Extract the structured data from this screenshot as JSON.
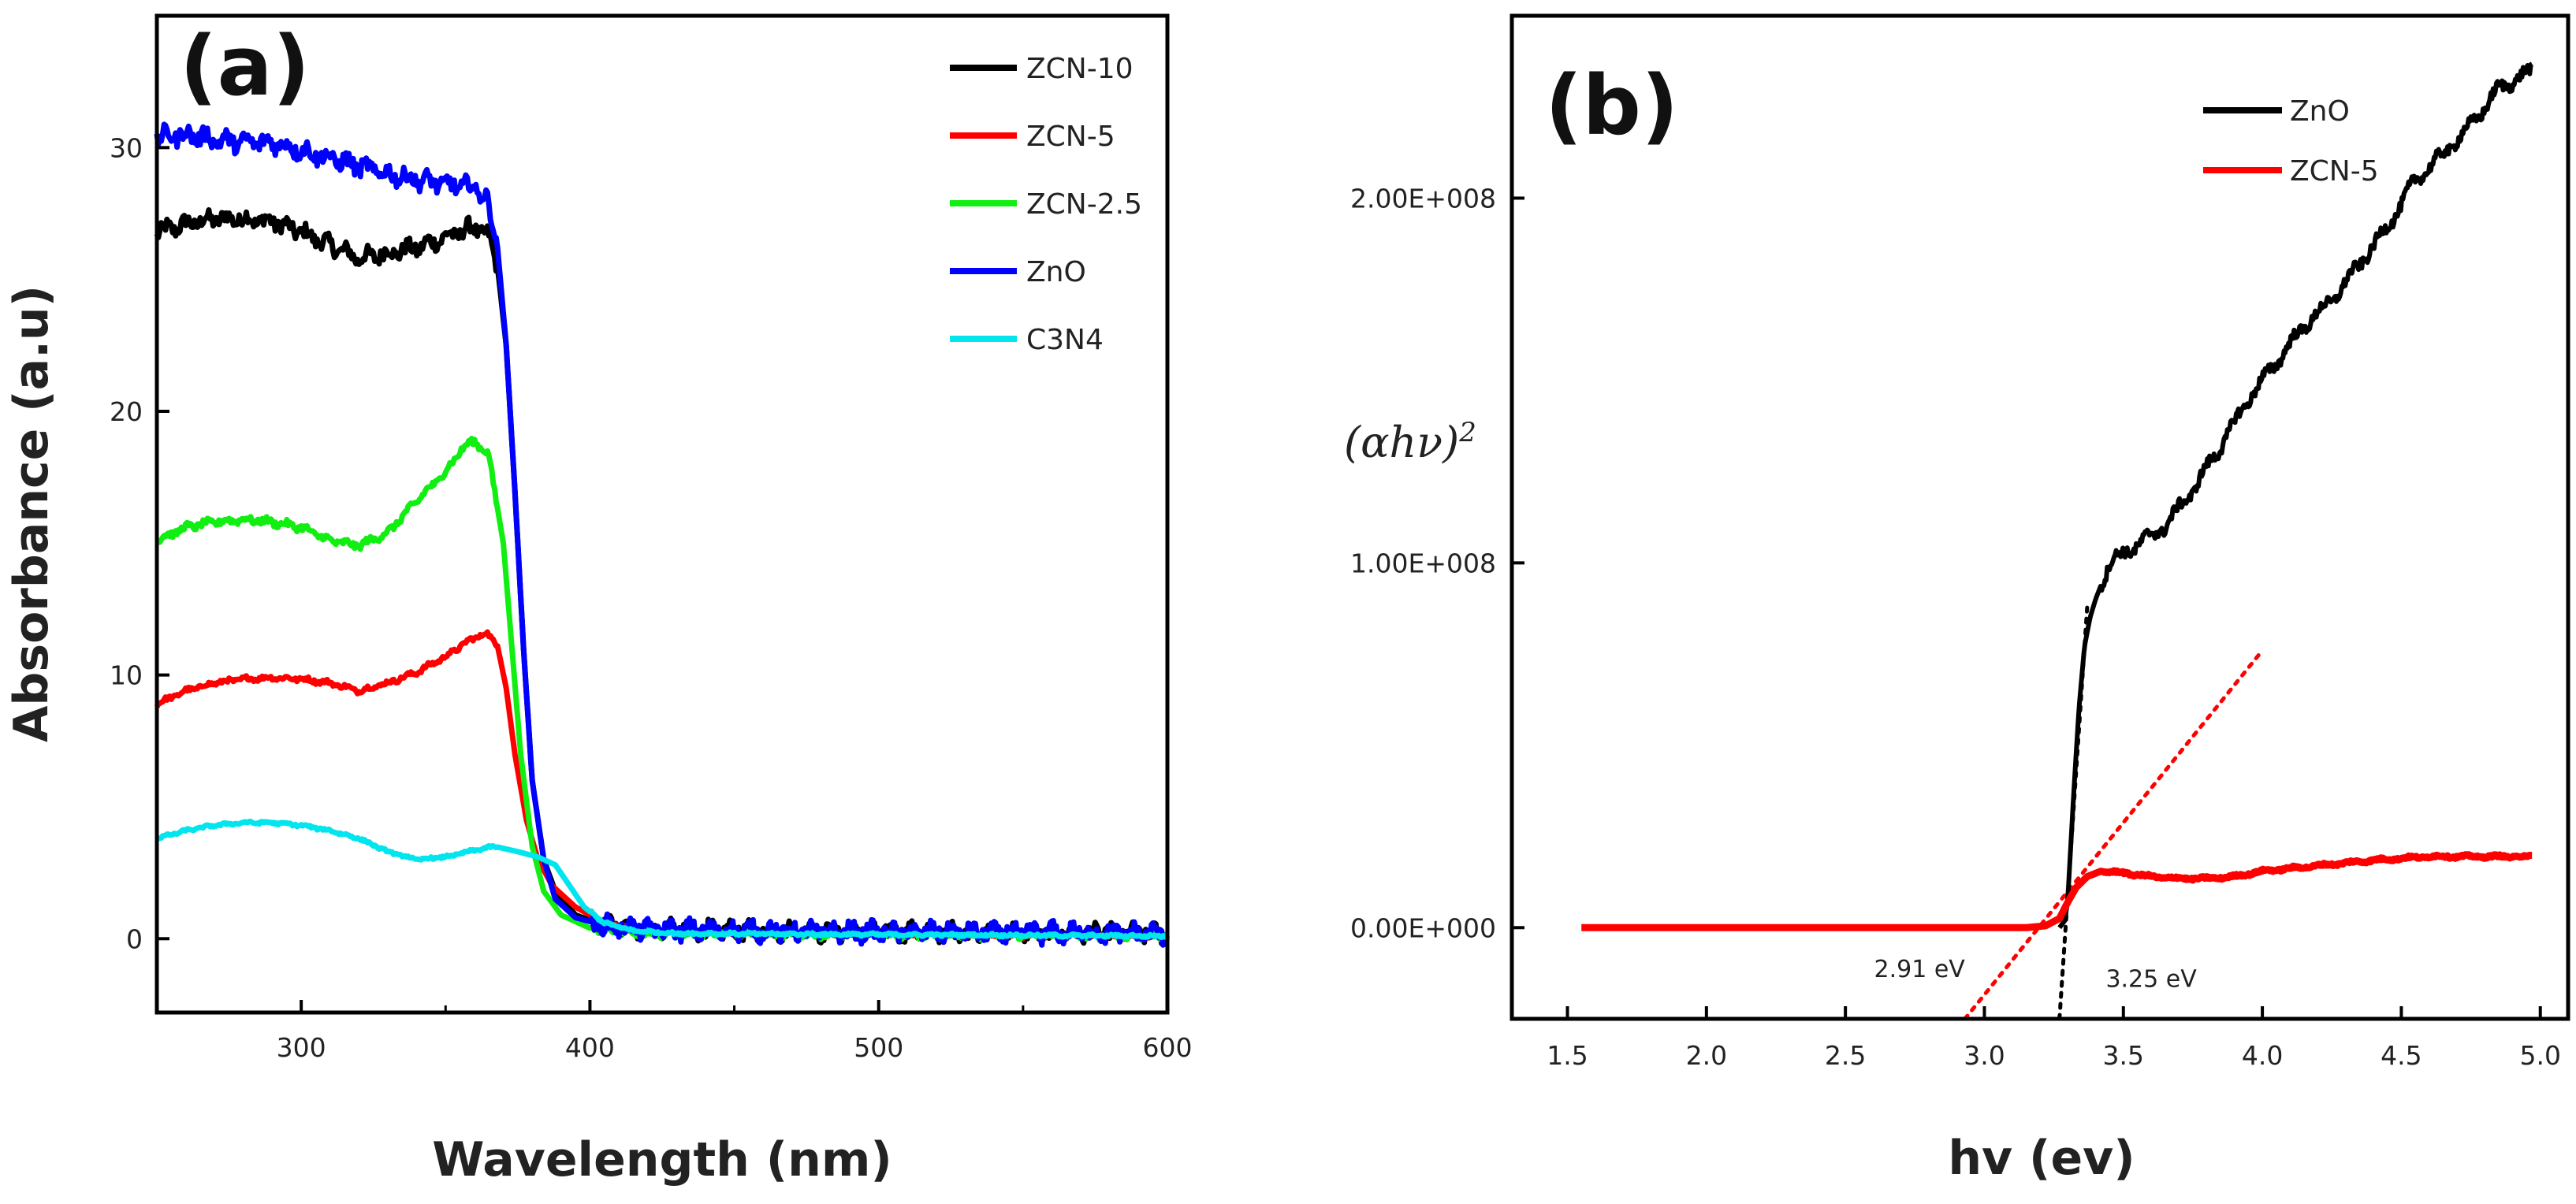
{
  "chart_data": [
    {
      "type": "line",
      "panel_label": "(a)",
      "xlabel": "Wavelength (nm)",
      "ylabel": "Absorbance (a.u)",
      "xlim": [
        250,
        600
      ],
      "ylim": [
        -2.8,
        35
      ],
      "xticks": [
        300,
        400,
        500,
        600
      ],
      "yticks": [
        0,
        10,
        20,
        30
      ],
      "legend_position": "top-right",
      "series": [
        {
          "name": "ZCN-10",
          "color": "#000000",
          "noise": 0.28,
          "points": [
            [
              250,
              26.8
            ],
            [
              260,
              27.1
            ],
            [
              270,
              27.3
            ],
            [
              280,
              27.3
            ],
            [
              290,
              27.2
            ],
            [
              300,
              26.8
            ],
            [
              310,
              26.3
            ],
            [
              320,
              25.8
            ],
            [
              330,
              26.0
            ],
            [
              340,
              26.2
            ],
            [
              350,
              26.6
            ],
            [
              360,
              27.0
            ],
            [
              365,
              26.6
            ],
            [
              368,
              25.5
            ],
            [
              371,
              22.5
            ],
            [
              374,
              17
            ],
            [
              377,
              11
            ],
            [
              380,
              6
            ],
            [
              384,
              3
            ],
            [
              388,
              1.8
            ],
            [
              395,
              0.9
            ],
            [
              405,
              0.5
            ],
            [
              420,
              0.35
            ],
            [
              450,
              0.3
            ],
            [
              500,
              0.25
            ],
            [
              600,
              0.2
            ]
          ]
        },
        {
          "name": "ZCN-5",
          "color": "#ff0000",
          "noise": 0.08,
          "points": [
            [
              250,
              8.9
            ],
            [
              260,
              9.4
            ],
            [
              270,
              9.7
            ],
            [
              280,
              9.85
            ],
            [
              290,
              9.9
            ],
            [
              300,
              9.85
            ],
            [
              310,
              9.7
            ],
            [
              320,
              9.4
            ],
            [
              330,
              9.7
            ],
            [
              340,
              10.1
            ],
            [
              350,
              10.7
            ],
            [
              358,
              11.3
            ],
            [
              364,
              11.6
            ],
            [
              368,
              11.1
            ],
            [
              371,
              9.5
            ],
            [
              374,
              7
            ],
            [
              378,
              4.5
            ],
            [
              382,
              3
            ],
            [
              387,
              2.0
            ],
            [
              395,
              1.2
            ],
            [
              405,
              0.6
            ],
            [
              420,
              0.3
            ],
            [
              450,
              0.2
            ],
            [
              500,
              0.15
            ],
            [
              600,
              0.1
            ]
          ]
        },
        {
          "name": "ZCN-2.5",
          "color": "#11ee11",
          "noise": 0.12,
          "points": [
            [
              250,
              15.1
            ],
            [
              260,
              15.6
            ],
            [
              270,
              15.8
            ],
            [
              280,
              15.9
            ],
            [
              290,
              15.8
            ],
            [
              300,
              15.6
            ],
            [
              310,
              15.1
            ],
            [
              320,
              14.9
            ],
            [
              330,
              15.4
            ],
            [
              340,
              16.6
            ],
            [
              350,
              17.7
            ],
            [
              355,
              18.5
            ],
            [
              360,
              18.9
            ],
            [
              365,
              18.3
            ],
            [
              370,
              15
            ],
            [
              373,
              11
            ],
            [
              376,
              7
            ],
            [
              380,
              3.5
            ],
            [
              384,
              1.8
            ],
            [
              390,
              0.9
            ],
            [
              400,
              0.4
            ],
            [
              420,
              0.2
            ],
            [
              600,
              0.1
            ]
          ]
        },
        {
          "name": "ZnO",
          "color": "#0000ff",
          "noise": 0.3,
          "points": [
            [
              250,
              30.4
            ],
            [
              260,
              30.5
            ],
            [
              270,
              30.3
            ],
            [
              280,
              30.2
            ],
            [
              290,
              30.2
            ],
            [
              300,
              29.9
            ],
            [
              310,
              29.6
            ],
            [
              320,
              29.3
            ],
            [
              330,
              29.0
            ],
            [
              340,
              28.8
            ],
            [
              350,
              28.6
            ],
            [
              360,
              28.5
            ],
            [
              364,
              28.1
            ],
            [
              366,
              27.2
            ],
            [
              368,
              26.2
            ],
            [
              371,
              22.5
            ],
            [
              374,
              17
            ],
            [
              377,
              11
            ],
            [
              380,
              6
            ],
            [
              384,
              3
            ],
            [
              388,
              1.5
            ],
            [
              395,
              0.8
            ],
            [
              405,
              0.5
            ],
            [
              420,
              0.35
            ],
            [
              500,
              0.25
            ],
            [
              600,
              0.2
            ]
          ]
        },
        {
          "name": "C3N4",
          "color": "#00e5ee",
          "noise": 0.04,
          "points": [
            [
              250,
              3.8
            ],
            [
              260,
              4.1
            ],
            [
              270,
              4.3
            ],
            [
              280,
              4.4
            ],
            [
              290,
              4.4
            ],
            [
              300,
              4.3
            ],
            [
              310,
              4.1
            ],
            [
              320,
              3.8
            ],
            [
              330,
              3.3
            ],
            [
              340,
              3.0
            ],
            [
              350,
              3.1
            ],
            [
              360,
              3.35
            ],
            [
              367,
              3.5
            ],
            [
              375,
              3.3
            ],
            [
              382,
              3.1
            ],
            [
              388,
              2.8
            ],
            [
              393,
              2.0
            ],
            [
              398,
              1.2
            ],
            [
              405,
              0.6
            ],
            [
              415,
              0.3
            ],
            [
              430,
              0.2
            ],
            [
              600,
              0.1
            ]
          ]
        }
      ]
    },
    {
      "type": "line",
      "panel_label": "(b)",
      "xlabel": "hv (ev)",
      "ylabel": "(αhν)²",
      "ylabel_base": "(αhν)",
      "ylabel_power": "2",
      "xlim": [
        1.3,
        5.1
      ],
      "ylim": [
        -25000000.0,
        250000000.0
      ],
      "xticks": [
        "1.5",
        "2.0",
        "2.5",
        "3.0",
        "3.5",
        "4.0",
        "4.5",
        "5.0"
      ],
      "yticks": [
        {
          "value": 0,
          "label": "0.00E+000"
        },
        {
          "value": 100000000.0,
          "label": "1.00E+008"
        },
        {
          "value": 200000000.0,
          "label": "2.00E+008"
        }
      ],
      "legend_position": "top-right",
      "series": [
        {
          "name": "ZnO",
          "color": "#000000",
          "noise": 1500000.0,
          "points": [
            [
              3.27,
              0
            ],
            [
              3.29,
              2000000.0
            ],
            [
              3.3,
              8000000.0
            ],
            [
              3.32,
              35000000.0
            ],
            [
              3.34,
              60000000.0
            ],
            [
              3.36,
              77000000.0
            ],
            [
              3.38,
              85000000.0
            ],
            [
              3.4,
              90000000.0
            ],
            [
              3.45,
              100000000.0
            ],
            [
              3.55,
              105000000.0
            ],
            [
              3.65,
              110000000.0
            ],
            [
              3.75,
              120000000.0
            ],
            [
              3.85,
              132000000.0
            ],
            [
              3.95,
              145000000.0
            ],
            [
              4.05,
              155000000.0
            ],
            [
              4.15,
              165000000.0
            ],
            [
              4.25,
              172000000.0
            ],
            [
              4.35,
              182000000.0
            ],
            [
              4.45,
              192000000.0
            ],
            [
              4.55,
              205000000.0
            ],
            [
              4.65,
              212000000.0
            ],
            [
              4.75,
              220000000.0
            ],
            [
              4.85,
              230000000.0
            ],
            [
              4.97,
              235000000.0
            ]
          ]
        },
        {
          "name": "ZCN-5",
          "color": "#ff0000",
          "noise": 300000.0,
          "points": [
            [
              1.55,
              0
            ],
            [
              2.0,
              0
            ],
            [
              2.5,
              0
            ],
            [
              3.0,
              0
            ],
            [
              3.15,
              0
            ],
            [
              3.22,
              500000.0
            ],
            [
              3.27,
              2500000.0
            ],
            [
              3.3,
              7000000.0
            ],
            [
              3.33,
              11000000.0
            ],
            [
              3.37,
              14000000.0
            ],
            [
              3.42,
              15500000.0
            ],
            [
              3.5,
              15000000.0
            ],
            [
              3.6,
              14000000.0
            ],
            [
              3.7,
              13500000.0
            ],
            [
              3.8,
              13500000.0
            ],
            [
              3.9,
              14000000.0
            ],
            [
              4.0,
              15500000.0
            ],
            [
              4.2,
              17000000.0
            ],
            [
              4.4,
              18500000.0
            ],
            [
              4.6,
              19500000.0
            ],
            [
              4.8,
              19500000.0
            ],
            [
              4.97,
              19500000.0
            ]
          ]
        }
      ],
      "tangents": [
        {
          "color": "#ff0000",
          "from": [
            2.93,
            -25000000.0
          ],
          "to": [
            4.0,
            76000000.0
          ]
        },
        {
          "color": "#000000",
          "from": [
            3.27,
            -25000000.0
          ],
          "to": [
            3.37,
            88000000.0
          ]
        }
      ],
      "annotations": [
        {
          "text": "2.91 eV",
          "x": 2.93,
          "y": -13500000.0
        },
        {
          "text": "3.25 eV",
          "x": 3.6,
          "y": -16200000.0
        }
      ]
    }
  ]
}
